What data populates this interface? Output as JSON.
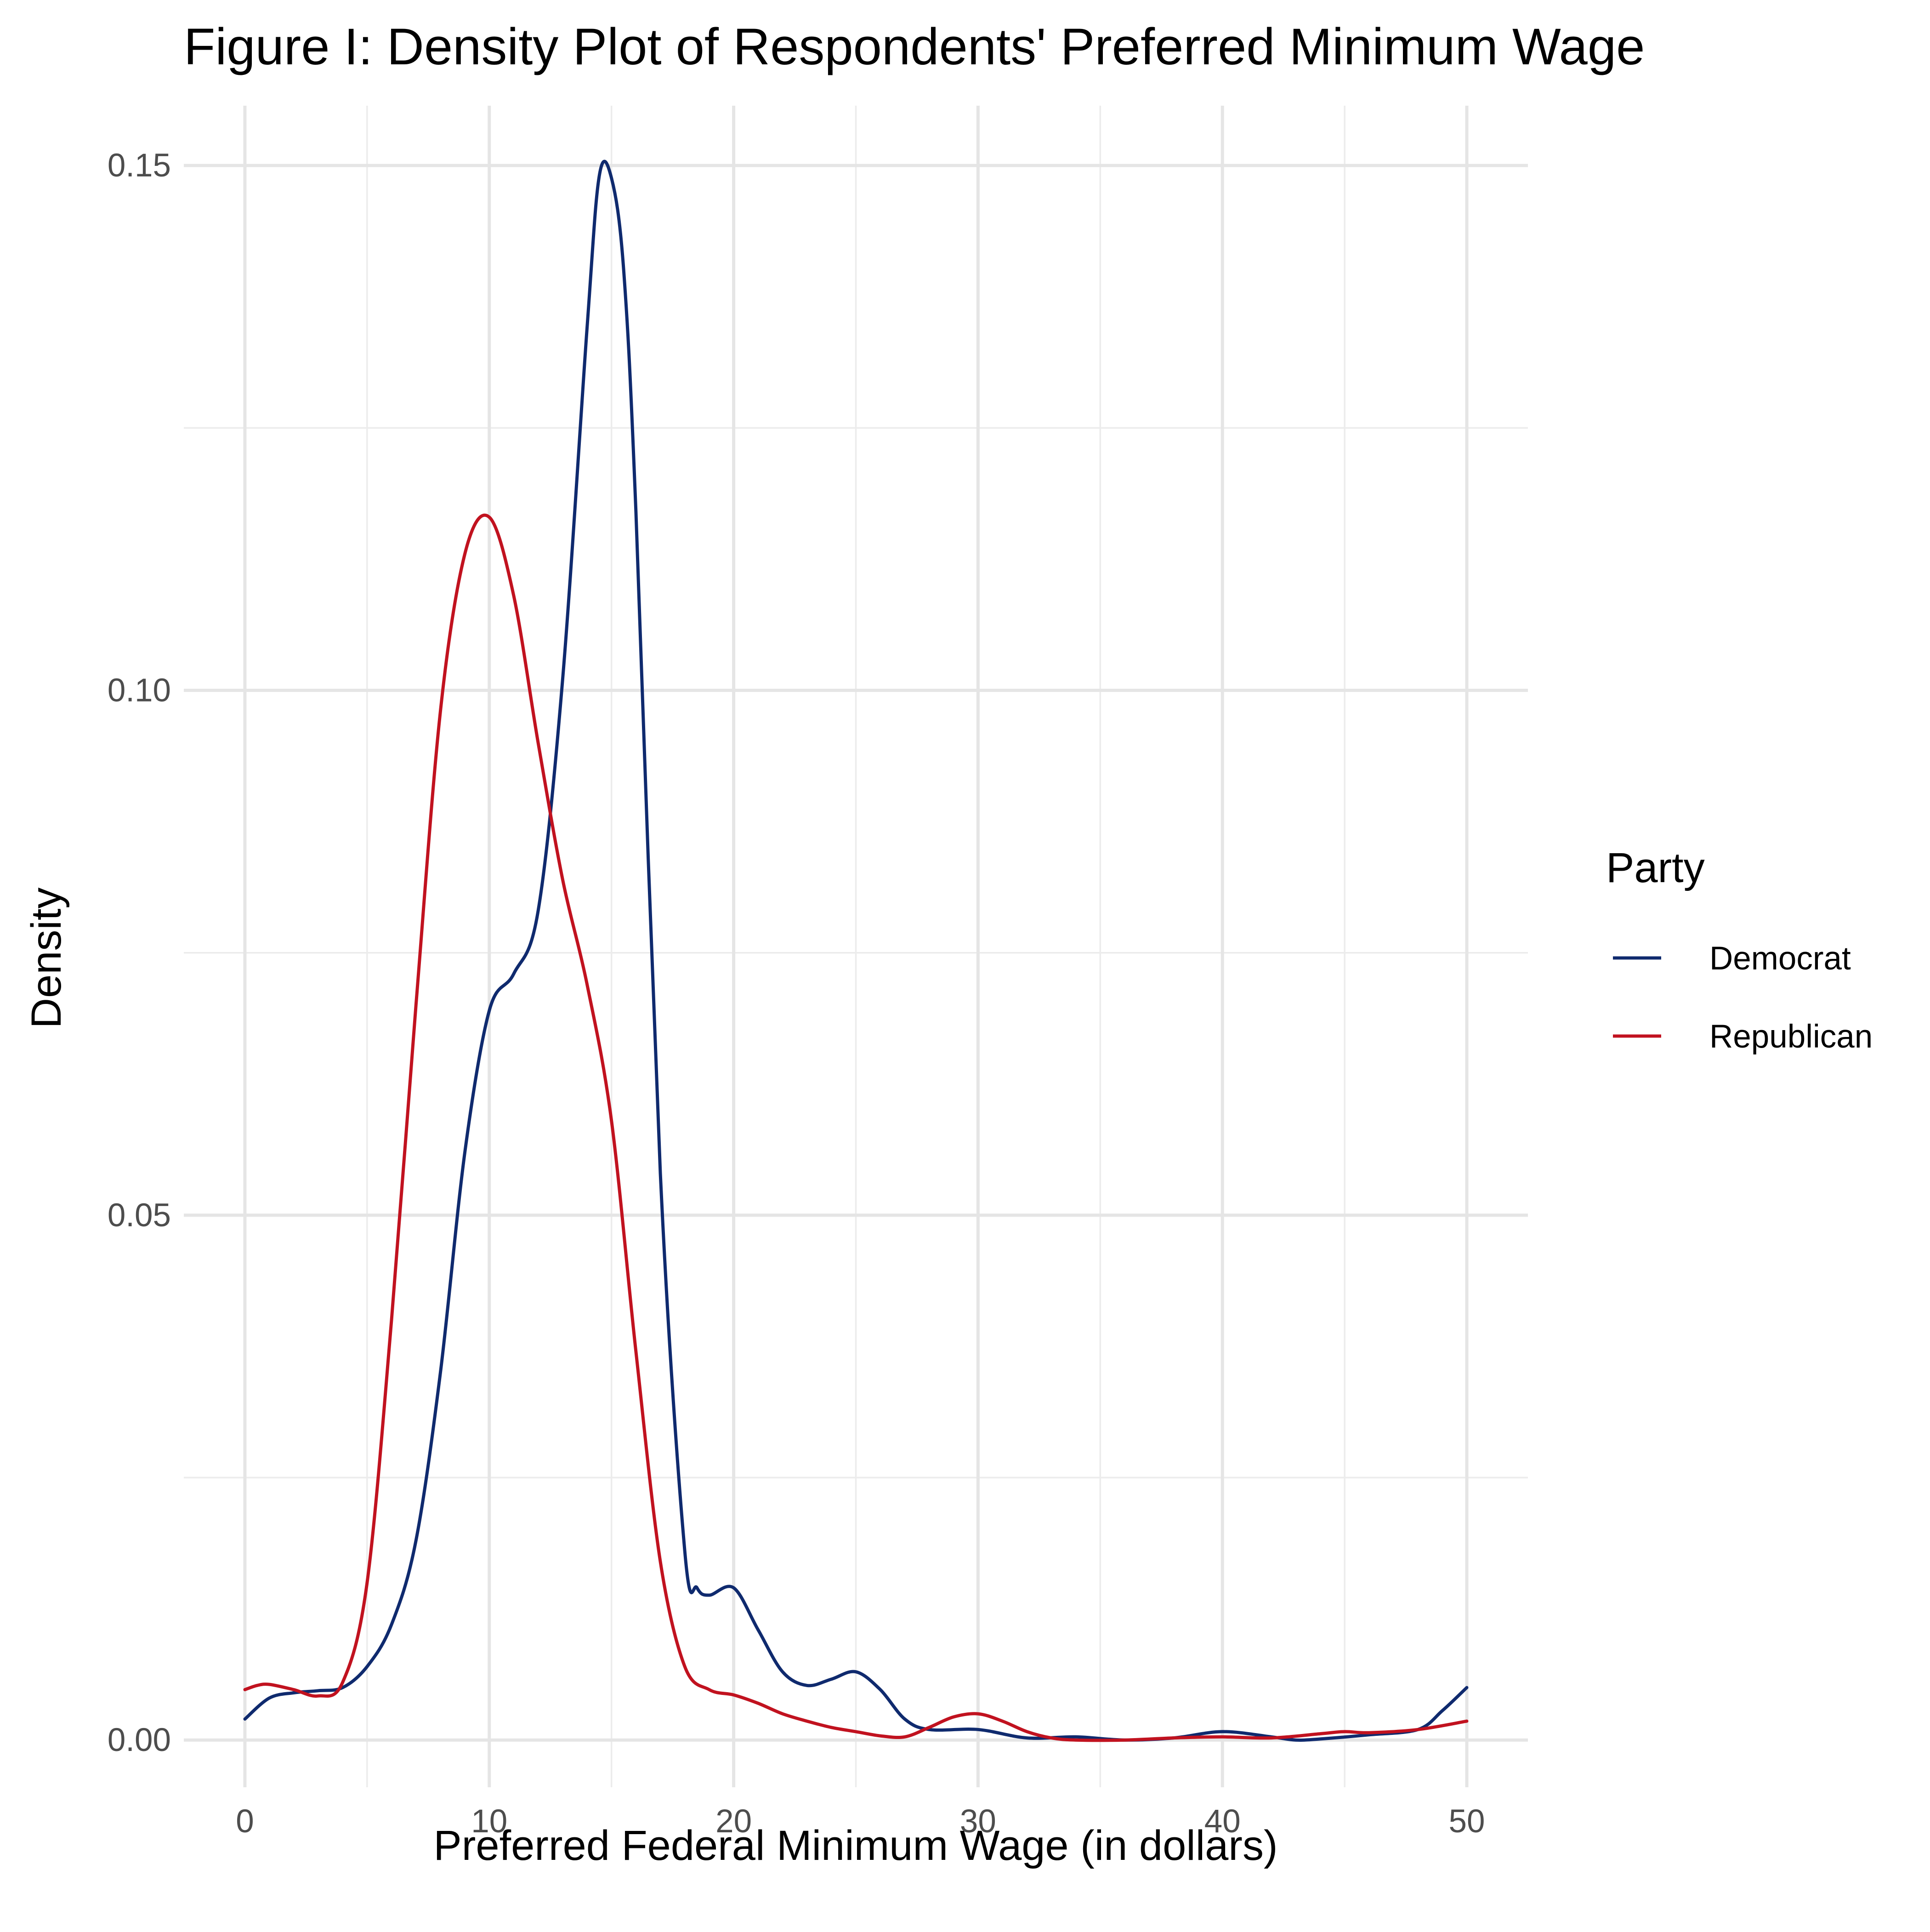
{
  "chart_data": {
    "type": "line",
    "title": "Figure I: Density Plot of Respondents' Preferred Minimum Wage",
    "xlabel": "Preferred Federal Minimum Wage (in dollars)",
    "ylabel": "Density",
    "xlim": [
      -2.5,
      52.5
    ],
    "ylim": [
      -0.0045,
      0.1557
    ],
    "x_ticks": [
      0,
      10,
      20,
      30,
      40,
      50
    ],
    "x_tick_labels": [
      "0",
      "10",
      "20",
      "30",
      "40",
      "50"
    ],
    "y_ticks": [
      0.0,
      0.05,
      0.1,
      0.15
    ],
    "y_tick_labels": [
      "0.00",
      "0.05",
      "0.10",
      "0.15"
    ],
    "grid": true,
    "legend": {
      "title": "Party",
      "position": "right"
    },
    "series": [
      {
        "name": "Democrat",
        "color": "#0f2a6e",
        "x": [
          0,
          1,
          2,
          3,
          4,
          5,
          6,
          7,
          8,
          9,
          10,
          11,
          12,
          13,
          14,
          14.5,
          15,
          15.5,
          16,
          17,
          18,
          18.5,
          19,
          20,
          21,
          22,
          23,
          24,
          25,
          26,
          27,
          28,
          30,
          32,
          34,
          36,
          38,
          40,
          42,
          43,
          44,
          46,
          48,
          49,
          50
        ],
        "y": [
          0.002,
          0.004,
          0.0045,
          0.0047,
          0.005,
          0.007,
          0.011,
          0.019,
          0.035,
          0.056,
          0.0695,
          0.073,
          0.079,
          0.101,
          0.1345,
          0.149,
          0.1488,
          0.14,
          0.117,
          0.054,
          0.018,
          0.0145,
          0.0138,
          0.0145,
          0.0105,
          0.0065,
          0.0052,
          0.0058,
          0.0065,
          0.0048,
          0.002,
          0.001,
          0.001,
          0.0002,
          0.0003,
          0.0,
          0.0002,
          0.0008,
          0.0003,
          0.0,
          0.0001,
          0.0005,
          0.001,
          0.0028,
          0.005
        ]
      },
      {
        "name": "Republican",
        "color": "#c1121f",
        "x": [
          0,
          0.5,
          1,
          2,
          3,
          4,
          5,
          6,
          7,
          8,
          9,
          10,
          11,
          12,
          13,
          14,
          15,
          16,
          17,
          18,
          19,
          20,
          21,
          22,
          23,
          24,
          25,
          26,
          27,
          28,
          29,
          30,
          31,
          32,
          33,
          34,
          36,
          38,
          40,
          42,
          44,
          45,
          46,
          48,
          50
        ],
        "y": [
          0.0048,
          0.0052,
          0.0053,
          0.0048,
          0.0042,
          0.0055,
          0.015,
          0.04,
          0.07,
          0.098,
          0.113,
          0.1165,
          0.109,
          0.095,
          0.082,
          0.072,
          0.059,
          0.037,
          0.017,
          0.007,
          0.0048,
          0.0043,
          0.0035,
          0.0025,
          0.0018,
          0.0012,
          0.0008,
          0.0004,
          0.0003,
          0.0012,
          0.0022,
          0.0025,
          0.0018,
          0.0008,
          0.0002,
          0.0,
          0.0,
          0.0002,
          0.0003,
          0.0002,
          0.0006,
          0.0008,
          0.0007,
          0.001,
          0.0018
        ]
      }
    ]
  }
}
